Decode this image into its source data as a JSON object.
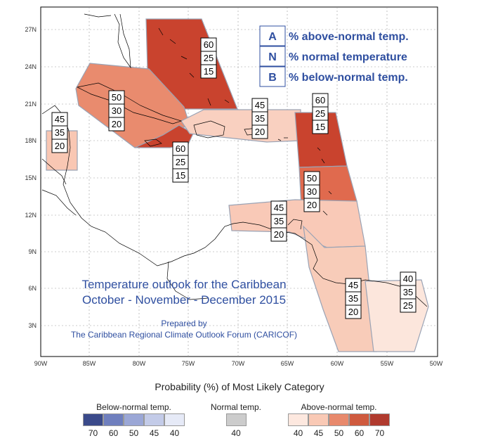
{
  "map": {
    "lat_labels": [
      "27N",
      "24N",
      "21N",
      "18N",
      "15N",
      "12N",
      "9N",
      "6N",
      "3N"
    ],
    "lon_labels": [
      "90W",
      "85W",
      "80W",
      "75W",
      "70W",
      "65W",
      "60W",
      "55W",
      "50W"
    ],
    "title_line1": "Temperature outlook for the Caribbean",
    "title_line2": "October - November - December 2015",
    "prepared_line1": "Prepared by",
    "prepared_line2": "The Caribbean Regional Climate Outlook Forum (CARICOF)"
  },
  "key": [
    {
      "letter": "A",
      "text": "% above-normal temp."
    },
    {
      "letter": "N",
      "text": "% normal temperature"
    },
    {
      "letter": "B",
      "text": "% below-normal temp."
    }
  ],
  "regions": [
    {
      "name": "bahamas",
      "fill": "#c0392b",
      "values": [
        "60",
        "25",
        "15"
      ]
    },
    {
      "name": "cuba-cayman",
      "fill": "#e8896c",
      "values": [
        "50",
        "30",
        "20"
      ]
    },
    {
      "name": "jamaica",
      "fill": "#c0392b",
      "values": [
        "60",
        "25",
        "15"
      ]
    },
    {
      "name": "belize",
      "fill": "#f9c9b5",
      "values": [
        "45",
        "35",
        "20"
      ]
    },
    {
      "name": "hispaniola-puerto-rico",
      "fill": "#f9c9b5",
      "values": [
        "45",
        "35",
        "20"
      ]
    },
    {
      "name": "northern-lesser-antilles",
      "fill": "#c0392b",
      "values": [
        "60",
        "25",
        "15"
      ]
    },
    {
      "name": "windward-islands",
      "fill": "#e8896c",
      "values": [
        "50",
        "30",
        "20"
      ]
    },
    {
      "name": "abc-trinidad",
      "fill": "#f9c9b5",
      "values": [
        "45",
        "35",
        "20"
      ]
    },
    {
      "name": "guyana",
      "fill": "#f9c9b5",
      "values": [
        "45",
        "35",
        "20"
      ]
    },
    {
      "name": "suriname-french-guiana",
      "fill": "#fde8df",
      "values": [
        "40",
        "35",
        "25"
      ]
    }
  ],
  "probability_title": "Probability (%) of Most Likely Category",
  "scales": {
    "below": {
      "label": "Below-normal temp.",
      "numbers": [
        "70",
        "60",
        "50",
        "45",
        "40"
      ],
      "colors": [
        "#3a4a8a",
        "#6f7fbe",
        "#9ba7d6",
        "#c3cbe8",
        "#e6eaf7"
      ]
    },
    "normal": {
      "label": "Normal temp.",
      "numbers": [
        "40"
      ],
      "colors": [
        "#cccccc"
      ]
    },
    "above": {
      "label": "Above-normal temp.",
      "numbers": [
        "40",
        "45",
        "50",
        "60",
        "70"
      ],
      "colors": [
        "#fde8df",
        "#f9c9b5",
        "#e8896c",
        "#cf5a3e",
        "#b03a2e"
      ]
    }
  }
}
